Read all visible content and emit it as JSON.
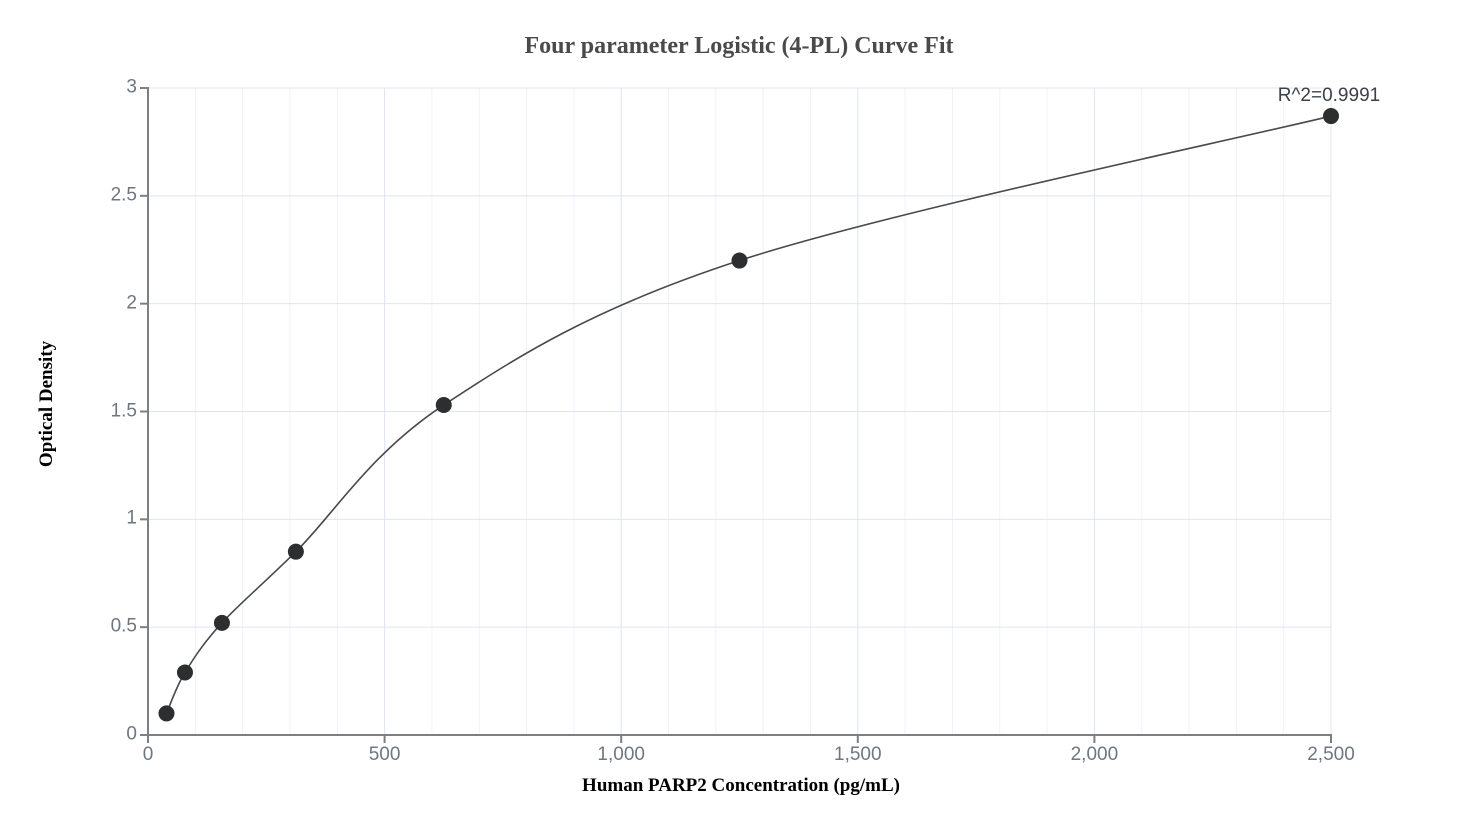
{
  "chart_data": {
    "type": "scatter",
    "title": "Four parameter Logistic (4-PL) Curve Fit",
    "xlabel": "Human PARP2 Concentration (pg/mL)",
    "ylabel": "Optical Density",
    "annotation": "R^2=0.9991",
    "fit_type": "four-parameter-logistic",
    "series": [
      {
        "name": "standard-curve",
        "x": [
          39.06,
          78.13,
          156.25,
          312.5,
          625,
          1250,
          2500
        ],
        "y": [
          0.1,
          0.29,
          0.52,
          0.85,
          1.53,
          2.2,
          2.87
        ]
      }
    ],
    "xlim": [
      0,
      2500
    ],
    "ylim": [
      0,
      3
    ],
    "x_tick_values": [
      0,
      500,
      1000,
      1500,
      2000,
      2500
    ],
    "x_tick_labels": [
      "0",
      "500",
      "1,000",
      "1,500",
      "2,000",
      "2,500"
    ],
    "y_tick_values": [
      0,
      0.5,
      1,
      1.5,
      2,
      2.5,
      3
    ],
    "y_tick_labels": [
      "0",
      "0.5",
      "1",
      "1.5",
      "2",
      "2.5",
      "3"
    ],
    "x_minor_grid_step": 100,
    "x_major_grid_step": 500,
    "y_grid_step": 0.5,
    "grid": true,
    "legend_position": "none",
    "colors": {
      "point": "#2d2e30",
      "curve": "#47494c",
      "grid_major": "#dfe4f1",
      "grid_minor": "#f0f2f9",
      "axis": "#7c7f84",
      "tick_label": "#6e7781",
      "title": "#4a4a4a",
      "annotation": "#3c4148",
      "background": "#ffffff"
    }
  }
}
